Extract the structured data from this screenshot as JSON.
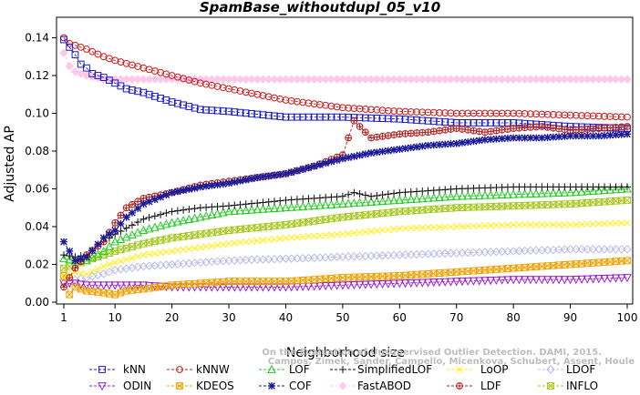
{
  "chart_data": {
    "type": "line",
    "title": "SpamBase_withoutdupl_05_v10",
    "xlabel": "Neighborhood size",
    "ylabel": "Adjusted AP",
    "xlim": [
      1,
      100
    ],
    "ylim": [
      0,
      0.145
    ],
    "xticks": [
      1,
      10,
      20,
      30,
      40,
      50,
      60,
      70,
      80,
      90,
      100
    ],
    "yticks": [
      0.0,
      0.02,
      0.04,
      0.06,
      0.08,
      0.1,
      0.12,
      0.14
    ],
    "ytick_labels": [
      "0.00",
      "0.02",
      "0.04",
      "0.06",
      "0.08",
      "0.10",
      "0.12",
      "0.14"
    ],
    "grid": false,
    "legend_position": "bottom",
    "credit_lines": [
      "Campos, Zimek, Sander, Campello, Micenkova, Schubert, Assent, Houle",
      "On the Evaluation of Unsupervised Outlier Detection. DAMI, 2015."
    ],
    "series": [
      {
        "name": "kNN",
        "color": "#1a1acc",
        "marker": "square",
        "x": [
          1,
          2,
          3,
          4,
          5,
          6,
          8,
          10,
          12,
          15,
          18,
          20,
          25,
          30,
          40,
          50,
          60,
          70,
          80,
          90,
          100
        ],
        "y": [
          0.139,
          0.135,
          0.131,
          0.126,
          0.124,
          0.121,
          0.119,
          0.116,
          0.113,
          0.111,
          0.108,
          0.106,
          0.102,
          0.101,
          0.098,
          0.098,
          0.097,
          0.095,
          0.095,
          0.093,
          0.092
        ]
      },
      {
        "name": "kNNW",
        "color": "#cc1a1a",
        "marker": "circle",
        "x": [
          1,
          2,
          3,
          5,
          8,
          10,
          15,
          20,
          25,
          30,
          40,
          50,
          60,
          70,
          80,
          90,
          100
        ],
        "y": [
          0.14,
          0.137,
          0.136,
          0.134,
          0.13,
          0.128,
          0.124,
          0.12,
          0.116,
          0.113,
          0.107,
          0.103,
          0.101,
          0.1,
          0.1,
          0.099,
          0.098
        ]
      },
      {
        "name": "LOF",
        "color": "#22cc22",
        "marker": "triangle-up",
        "x": [
          1,
          3,
          5,
          8,
          10,
          15,
          20,
          25,
          30,
          40,
          50,
          60,
          70,
          80,
          90,
          100
        ],
        "y": [
          0.023,
          0.022,
          0.022,
          0.027,
          0.032,
          0.038,
          0.042,
          0.045,
          0.048,
          0.05,
          0.052,
          0.054,
          0.056,
          0.057,
          0.058,
          0.06
        ]
      },
      {
        "name": "SimplifiedLOF",
        "color": "#111111",
        "marker": "plus",
        "x": [
          1,
          3,
          5,
          8,
          10,
          15,
          20,
          25,
          30,
          40,
          50,
          52,
          55,
          60,
          70,
          80,
          90,
          100
        ],
        "y": [
          0.025,
          0.024,
          0.025,
          0.032,
          0.036,
          0.044,
          0.048,
          0.05,
          0.051,
          0.054,
          0.056,
          0.058,
          0.056,
          0.058,
          0.06,
          0.061,
          0.061,
          0.061
        ]
      },
      {
        "name": "LoOP",
        "color": "#ffee22",
        "marker": "cross",
        "x": [
          1,
          3,
          5,
          8,
          10,
          15,
          20,
          30,
          40,
          50,
          60,
          70,
          80,
          90,
          100
        ],
        "y": [
          0.013,
          0.016,
          0.015,
          0.019,
          0.021,
          0.025,
          0.027,
          0.031,
          0.034,
          0.036,
          0.039,
          0.04,
          0.041,
          0.041,
          0.042
        ]
      },
      {
        "name": "LDOF",
        "color": "#bbbbe8",
        "marker": "diamond",
        "x": [
          1,
          3,
          5,
          8,
          10,
          15,
          20,
          30,
          40,
          50,
          60,
          70,
          80,
          90,
          100
        ],
        "y": [
          0.01,
          0.012,
          0.013,
          0.015,
          0.017,
          0.019,
          0.02,
          0.022,
          0.023,
          0.024,
          0.025,
          0.026,
          0.027,
          0.028,
          0.028
        ]
      },
      {
        "name": "ODIN",
        "color": "#9922cc",
        "marker": "triangle-down",
        "x": [
          1,
          3,
          5,
          10,
          15,
          20,
          30,
          40,
          50,
          60,
          70,
          80,
          90,
          100
        ],
        "y": [
          0.01,
          0.01,
          0.009,
          0.009,
          0.009,
          0.008,
          0.008,
          0.008,
          0.009,
          0.01,
          0.011,
          0.012,
          0.012,
          0.013
        ]
      },
      {
        "name": "KDEOS",
        "color": "#f0a000",
        "marker": "square-x",
        "x": [
          1,
          2,
          3,
          5,
          8,
          10,
          12,
          15,
          20,
          30,
          40,
          50,
          60,
          70,
          80,
          90,
          100
        ],
        "y": [
          0.014,
          0.004,
          0.008,
          0.006,
          0.005,
          0.004,
          0.006,
          0.007,
          0.009,
          0.011,
          0.011,
          0.013,
          0.014,
          0.016,
          0.018,
          0.02,
          0.022
        ]
      },
      {
        "name": "COF",
        "color": "#1a1a99",
        "marker": "asterisk",
        "x": [
          1,
          3,
          5,
          8,
          10,
          12,
          15,
          20,
          25,
          30,
          35,
          40,
          45,
          50,
          55,
          60,
          65,
          70,
          75,
          80,
          85,
          90,
          95,
          100
        ],
        "y": [
          0.032,
          0.022,
          0.024,
          0.034,
          0.038,
          0.045,
          0.052,
          0.058,
          0.061,
          0.063,
          0.066,
          0.068,
          0.072,
          0.076,
          0.079,
          0.081,
          0.083,
          0.084,
          0.086,
          0.087,
          0.087,
          0.088,
          0.088,
          0.089
        ]
      },
      {
        "name": "FastABOD",
        "color": "#ffc8e8",
        "marker": "diamond-filled",
        "x": [
          1,
          2,
          3,
          5,
          8,
          10,
          15,
          20,
          30,
          40,
          50,
          60,
          70,
          80,
          90,
          100
        ],
        "y": [
          0.132,
          0.125,
          0.122,
          0.12,
          0.118,
          0.118,
          0.118,
          0.118,
          0.118,
          0.118,
          0.118,
          0.118,
          0.118,
          0.118,
          0.118,
          0.118
        ]
      },
      {
        "name": "LDF",
        "color": "#b02020",
        "marker": "circle-plus",
        "x": [
          1,
          3,
          5,
          8,
          10,
          12,
          15,
          20,
          25,
          30,
          35,
          40,
          45,
          50,
          52,
          55,
          60,
          65,
          70,
          75,
          80,
          85,
          90,
          95,
          100
        ],
        "y": [
          0.008,
          0.018,
          0.025,
          0.032,
          0.042,
          0.05,
          0.055,
          0.058,
          0.062,
          0.064,
          0.066,
          0.068,
          0.072,
          0.078,
          0.096,
          0.087,
          0.089,
          0.09,
          0.092,
          0.09,
          0.092,
          0.093,
          0.091,
          0.092,
          0.093
        ]
      },
      {
        "name": "INFLO",
        "color": "#a6c81e",
        "marker": "hourglass",
        "x": [
          1,
          3,
          5,
          8,
          10,
          15,
          20,
          25,
          30,
          40,
          50,
          60,
          70,
          80,
          90,
          100
        ],
        "y": [
          0.018,
          0.02,
          0.022,
          0.025,
          0.027,
          0.031,
          0.034,
          0.036,
          0.038,
          0.041,
          0.045,
          0.048,
          0.05,
          0.051,
          0.052,
          0.054
        ]
      }
    ]
  }
}
